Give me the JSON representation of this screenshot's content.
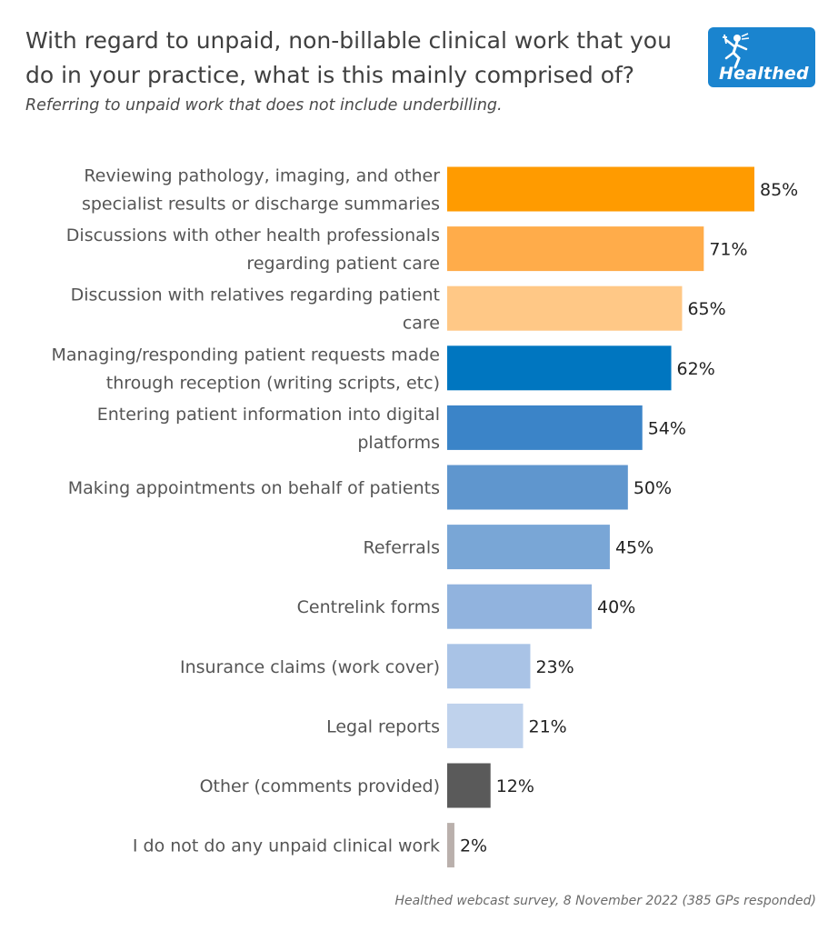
{
  "header": {
    "title": "With regard to unpaid, non-billable clinical work that you do in your practice, what is this mainly comprised of?",
    "subtitle": "Referring to unpaid work that does not include underbilling."
  },
  "logo": {
    "text": "Healthed",
    "icon": "hermes-figure-icon",
    "color": "#1a84cf"
  },
  "footer": {
    "source": "Healthed webcast survey, 8 November 2022 (385 GPs responded)"
  },
  "chart_data": {
    "type": "bar",
    "orientation": "horizontal",
    "unit": "%",
    "xlim": [
      0,
      100
    ],
    "grid": false,
    "categories": [
      [
        "Reviewing pathology, imaging, and other",
        "specialist results or discharge summaries"
      ],
      [
        "Discussions with other health professionals",
        "regarding patient care"
      ],
      [
        "Discussion with relatives regarding patient",
        "care"
      ],
      [
        "Managing/responding patient requests made",
        "through reception (writing scripts, etc)"
      ],
      [
        "Entering patient information into digital",
        "platforms"
      ],
      [
        "Making appointments on behalf of patients"
      ],
      [
        "Referrals"
      ],
      [
        "Centrelink forms"
      ],
      [
        "Insurance claims (work cover)"
      ],
      [
        "Legal reports"
      ],
      [
        "Other (comments provided)"
      ],
      [
        "I do not do any unpaid clinical work"
      ]
    ],
    "values": [
      85,
      71,
      65,
      62,
      54,
      50,
      45,
      40,
      23,
      21,
      12,
      2
    ],
    "labels": [
      "85%",
      "71%",
      "65%",
      "62%",
      "54%",
      "50%",
      "45%",
      "40%",
      "23%",
      "21%",
      "12%",
      "2%"
    ],
    "colors": [
      "#ff9b00",
      "#ffac4a",
      "#ffc886",
      "#0076c0",
      "#3b84c8",
      "#5f96ce",
      "#79a6d6",
      "#91b3de",
      "#a9c3e6",
      "#bfd2ec",
      "#5a5a5a",
      "#bab0ac"
    ]
  }
}
